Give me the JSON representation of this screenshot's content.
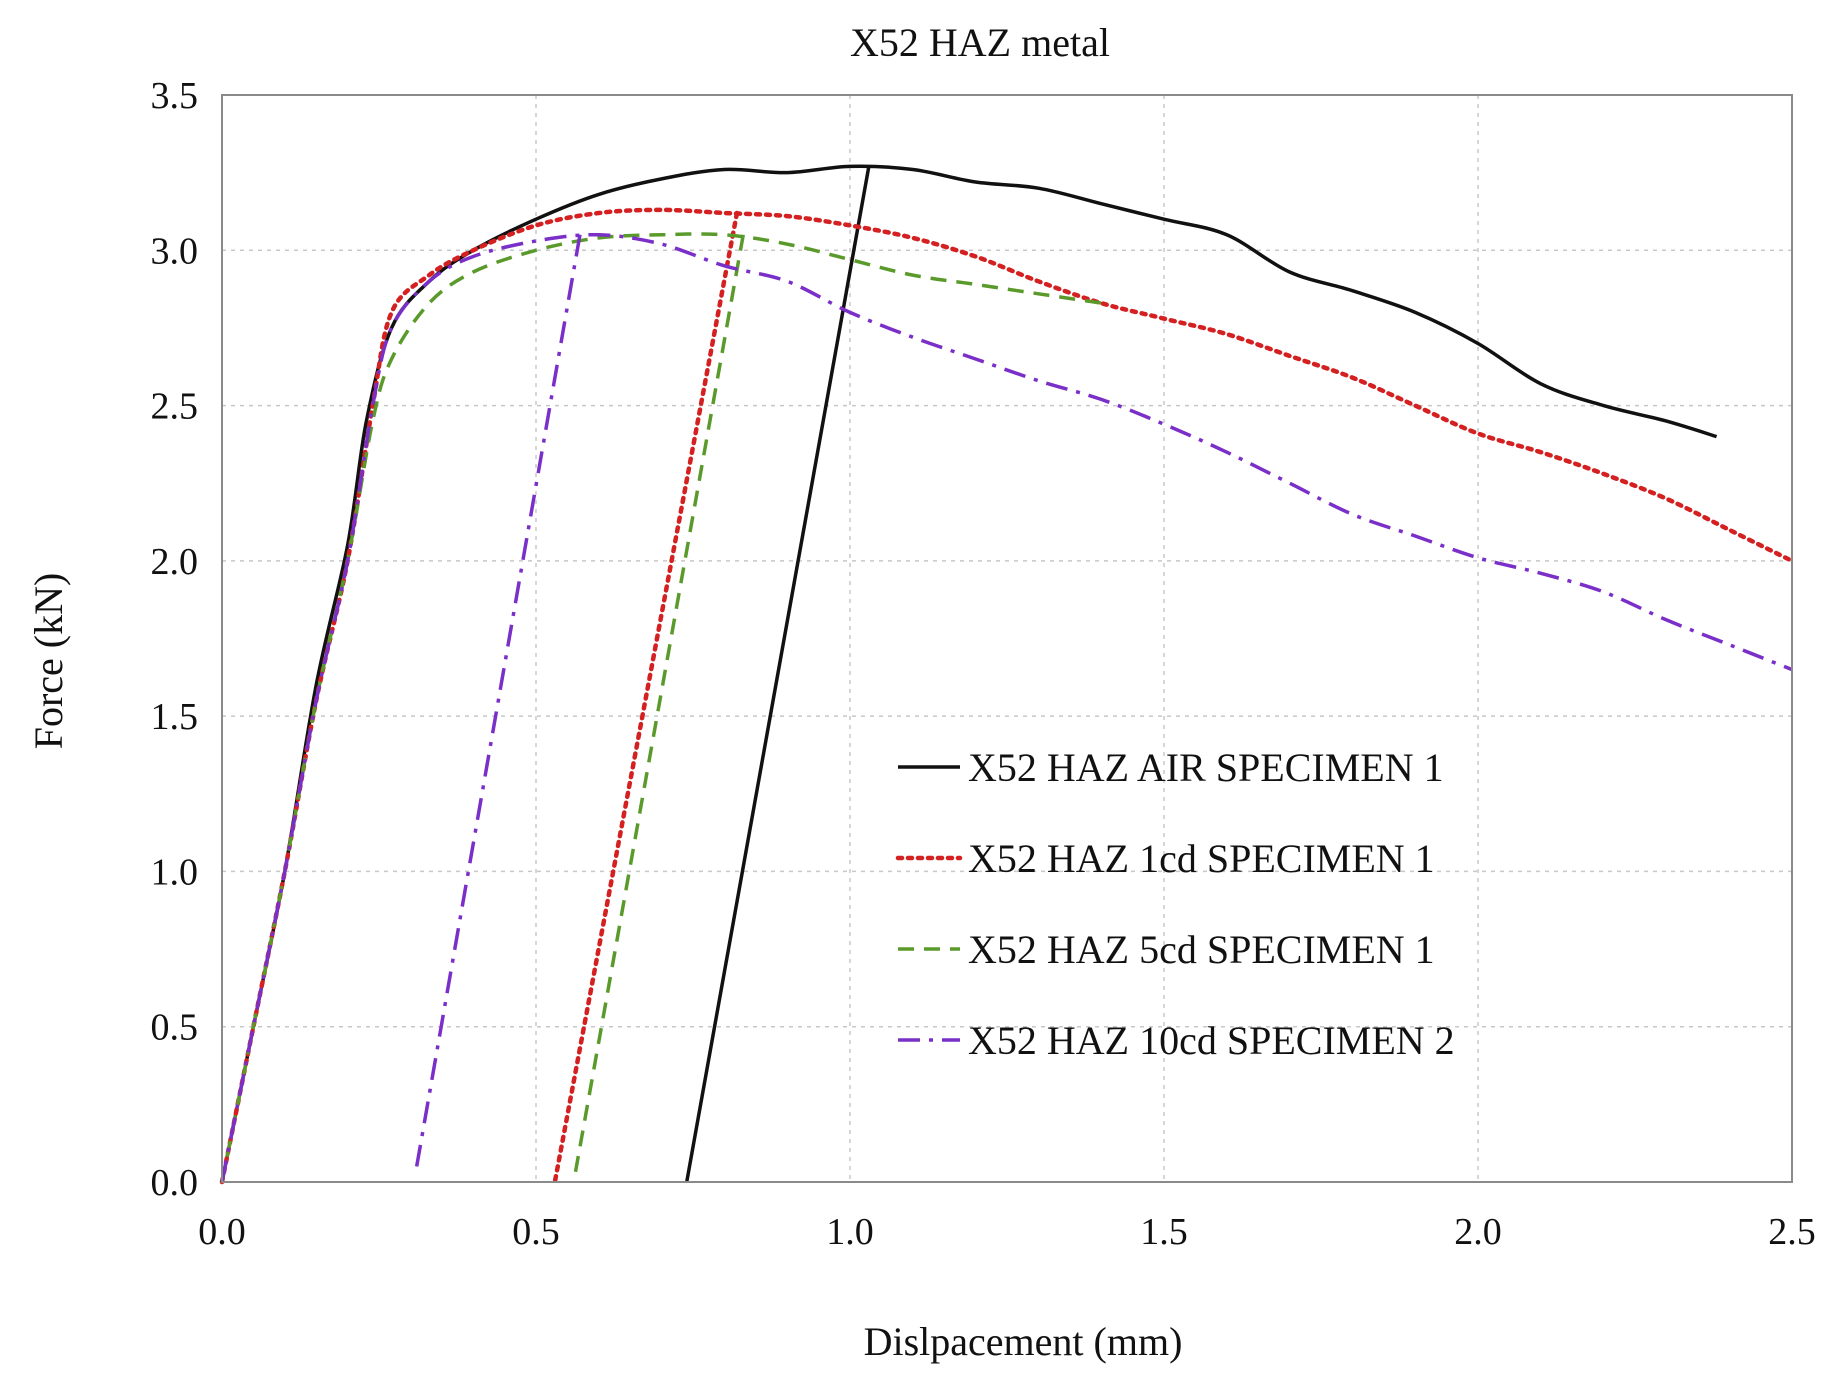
{
  "chart_data": {
    "type": "line",
    "title": "X52 HAZ metal",
    "xlabel": "Dislpacement (mm)",
    "ylabel": "Force (kN)",
    "xlim": [
      0,
      2.5
    ],
    "ylim": [
      0,
      3.5
    ],
    "xticks": [
      0.0,
      0.5,
      1.0,
      1.5,
      2.0,
      2.5
    ],
    "xtick_labels": [
      "0.0",
      "0.5",
      "1.0",
      "1.5",
      "2.0",
      "2.5"
    ],
    "yticks": [
      0.0,
      0.5,
      1.0,
      1.5,
      2.0,
      2.5,
      3.0,
      3.5
    ],
    "ytick_labels": [
      "0.0",
      "0.5",
      "1.0",
      "1.5",
      "2.0",
      "2.5",
      "3.0",
      "3.5"
    ],
    "grid": true,
    "legend_position": "lower-right",
    "series": [
      {
        "name": "X52 HAZ AIR SPECIMEN 1",
        "color": "#111111",
        "dash": "solid",
        "points": [
          [
            0.0,
            0.0
          ],
          [
            0.05,
            0.5
          ],
          [
            0.1,
            1.0
          ],
          [
            0.15,
            1.6
          ],
          [
            0.2,
            2.05
          ],
          [
            0.23,
            2.45
          ],
          [
            0.27,
            2.75
          ],
          [
            0.33,
            2.9
          ],
          [
            0.4,
            3.0
          ],
          [
            0.5,
            3.1
          ],
          [
            0.6,
            3.18
          ],
          [
            0.7,
            3.23
          ],
          [
            0.8,
            3.26
          ],
          [
            0.9,
            3.25
          ],
          [
            1.0,
            3.27
          ],
          [
            1.1,
            3.26
          ],
          [
            1.2,
            3.22
          ],
          [
            1.3,
            3.2
          ],
          [
            1.4,
            3.15
          ],
          [
            1.5,
            3.1
          ],
          [
            1.6,
            3.05
          ],
          [
            1.7,
            2.93
          ],
          [
            1.8,
            2.87
          ],
          [
            1.9,
            2.8
          ],
          [
            2.0,
            2.7
          ],
          [
            2.1,
            2.57
          ],
          [
            2.2,
            2.5
          ],
          [
            2.3,
            2.45
          ],
          [
            2.38,
            2.4
          ]
        ],
        "unload": [
          [
            1.03,
            3.27
          ],
          [
            0.74,
            0.0
          ]
        ]
      },
      {
        "name": "X52 HAZ 1cd SPECIMEN 1",
        "color": "#d42020",
        "dash": "dotted",
        "points": [
          [
            0.0,
            0.0
          ],
          [
            0.05,
            0.5
          ],
          [
            0.1,
            1.0
          ],
          [
            0.15,
            1.55
          ],
          [
            0.2,
            2.0
          ],
          [
            0.24,
            2.5
          ],
          [
            0.27,
            2.8
          ],
          [
            0.33,
            2.92
          ],
          [
            0.4,
            3.0
          ],
          [
            0.5,
            3.08
          ],
          [
            0.6,
            3.12
          ],
          [
            0.7,
            3.13
          ],
          [
            0.8,
            3.12
          ],
          [
            0.9,
            3.11
          ],
          [
            1.0,
            3.08
          ],
          [
            1.1,
            3.04
          ],
          [
            1.2,
            2.98
          ],
          [
            1.3,
            2.9
          ],
          [
            1.4,
            2.83
          ],
          [
            1.5,
            2.78
          ],
          [
            1.6,
            2.73
          ],
          [
            1.7,
            2.66
          ],
          [
            1.8,
            2.59
          ],
          [
            1.9,
            2.5
          ],
          [
            2.0,
            2.41
          ],
          [
            2.1,
            2.35
          ],
          [
            2.2,
            2.28
          ],
          [
            2.3,
            2.2
          ],
          [
            2.4,
            2.1
          ],
          [
            2.5,
            2.0
          ]
        ],
        "unload": [
          [
            0.82,
            3.12
          ],
          [
            0.53,
            0.0
          ]
        ]
      },
      {
        "name": "X52 HAZ 5cd SPECIMEN 1",
        "color": "#5a9a2a",
        "dash": "dashed",
        "points": [
          [
            0.0,
            0.0
          ],
          [
            0.05,
            0.5
          ],
          [
            0.1,
            1.0
          ],
          [
            0.15,
            1.55
          ],
          [
            0.2,
            2.0
          ],
          [
            0.24,
            2.45
          ],
          [
            0.27,
            2.65
          ],
          [
            0.33,
            2.83
          ],
          [
            0.4,
            2.93
          ],
          [
            0.5,
            3.0
          ],
          [
            0.6,
            3.04
          ],
          [
            0.7,
            3.05
          ],
          [
            0.8,
            3.05
          ],
          [
            0.9,
            3.02
          ],
          [
            1.0,
            2.97
          ],
          [
            1.1,
            2.92
          ],
          [
            1.2,
            2.89
          ],
          [
            1.3,
            2.86
          ],
          [
            1.4,
            2.83
          ]
        ],
        "unload": [
          [
            0.83,
            3.05
          ],
          [
            0.56,
            0.0
          ]
        ]
      },
      {
        "name": "X52 HAZ 10cd SPECIMEN 2",
        "color": "#7a2fc8",
        "dash": "dashdot",
        "points": [
          [
            0.0,
            0.0
          ],
          [
            0.05,
            0.5
          ],
          [
            0.1,
            1.0
          ],
          [
            0.15,
            1.55
          ],
          [
            0.2,
            2.0
          ],
          [
            0.24,
            2.5
          ],
          [
            0.27,
            2.75
          ],
          [
            0.33,
            2.9
          ],
          [
            0.4,
            2.98
          ],
          [
            0.5,
            3.03
          ],
          [
            0.6,
            3.05
          ],
          [
            0.7,
            3.02
          ],
          [
            0.8,
            2.95
          ],
          [
            0.9,
            2.9
          ],
          [
            1.0,
            2.8
          ],
          [
            1.1,
            2.72
          ],
          [
            1.2,
            2.65
          ],
          [
            1.3,
            2.58
          ],
          [
            1.4,
            2.52
          ],
          [
            1.5,
            2.44
          ],
          [
            1.6,
            2.35
          ],
          [
            1.7,
            2.25
          ],
          [
            1.8,
            2.15
          ],
          [
            1.9,
            2.08
          ],
          [
            2.0,
            2.01
          ],
          [
            2.1,
            1.96
          ],
          [
            2.2,
            1.9
          ],
          [
            2.3,
            1.81
          ],
          [
            2.4,
            1.73
          ],
          [
            2.5,
            1.65
          ]
        ],
        "unload": [
          [
            0.57,
            3.05
          ],
          [
            0.31,
            0.05
          ]
        ]
      }
    ]
  }
}
